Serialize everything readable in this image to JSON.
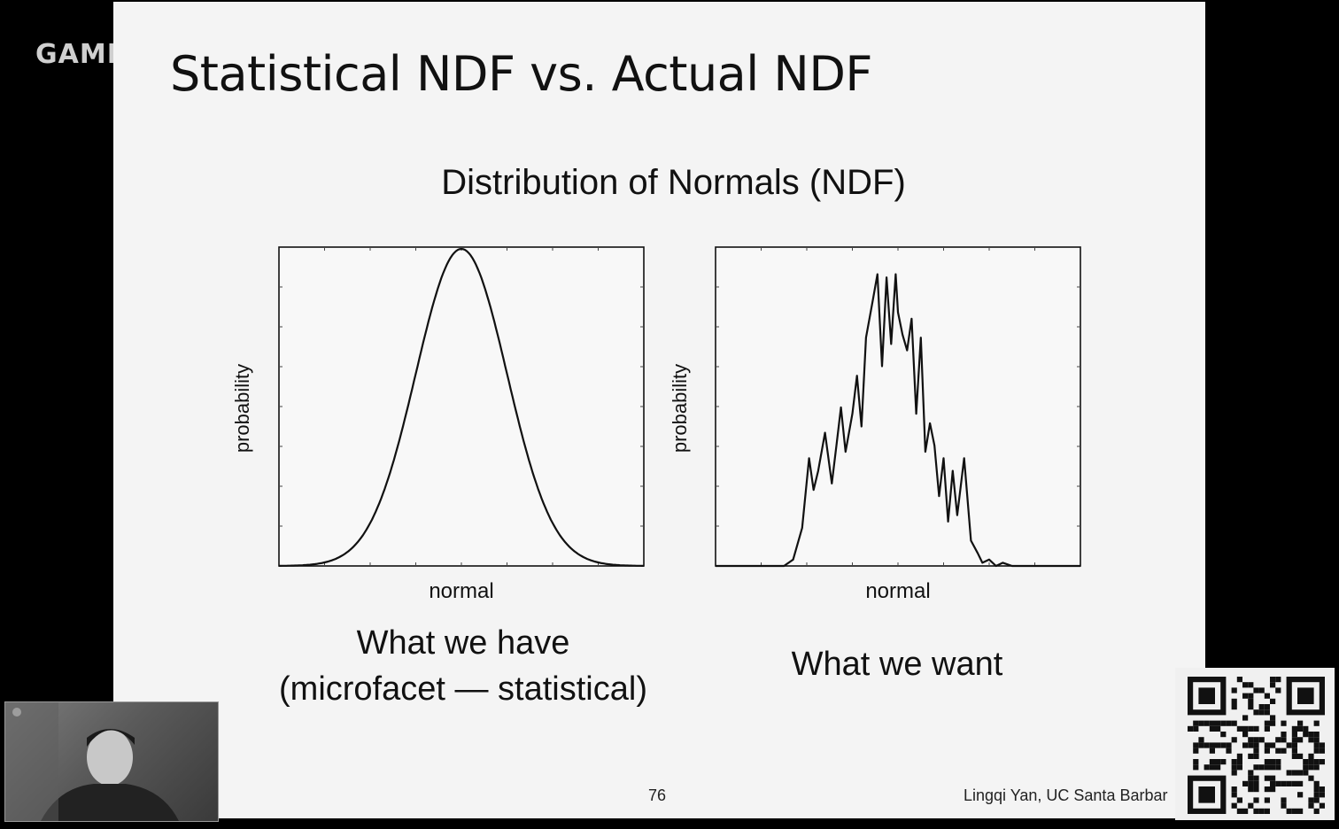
{
  "overlay": {
    "brand": "GAME"
  },
  "slide": {
    "title": "Statistical NDF vs. Actual NDF",
    "figure_heading": "Distribution of Normals (NDF)",
    "page_number": "76",
    "author": "Lingqi Yan, UC Santa Barbar"
  },
  "captions": {
    "left_line1": "What we have",
    "left_line2": "(microfacet — statistical)",
    "right": "What we want"
  },
  "chart_data": [
    {
      "type": "line",
      "xlabel": "normal",
      "ylabel": "probability",
      "curve": "gaussian",
      "x": [
        -4,
        -3.5,
        -3,
        -2.5,
        -2,
        -1.5,
        -1,
        -0.5,
        0,
        0.5,
        1,
        1.5,
        2,
        2.5,
        3,
        3.5,
        4
      ],
      "y": [
        0.0003,
        0.0022,
        0.011,
        0.044,
        0.135,
        0.325,
        0.607,
        0.882,
        1.0,
        0.882,
        0.607,
        0.325,
        0.135,
        0.044,
        0.011,
        0.0022,
        0.0003
      ],
      "xlim": [
        -4,
        4
      ],
      "ylim": [
        0,
        1
      ]
    },
    {
      "type": "line",
      "xlabel": "normal",
      "ylabel": "probability",
      "curve": "noisy",
      "x": [
        -4,
        -2.5,
        -2.3,
        -2.1,
        -1.95,
        -1.85,
        -1.75,
        -1.6,
        -1.45,
        -1.35,
        -1.25,
        -1.15,
        -1.0,
        -0.9,
        -0.8,
        -0.7,
        -0.55,
        -0.45,
        -0.35,
        -0.25,
        -0.15,
        -0.05,
        0.0,
        0.1,
        0.2,
        0.3,
        0.4,
        0.5,
        0.6,
        0.7,
        0.8,
        0.9,
        1.0,
        1.1,
        1.2,
        1.3,
        1.45,
        1.6,
        1.75,
        1.85,
        2.0,
        2.15,
        2.3,
        2.5,
        2.7,
        4
      ],
      "y": [
        0,
        0,
        0.02,
        0.12,
        0.34,
        0.24,
        0.3,
        0.42,
        0.26,
        0.38,
        0.5,
        0.36,
        0.48,
        0.6,
        0.44,
        0.72,
        0.84,
        0.92,
        0.63,
        0.91,
        0.7,
        0.92,
        0.8,
        0.73,
        0.68,
        0.78,
        0.48,
        0.72,
        0.36,
        0.45,
        0.38,
        0.22,
        0.34,
        0.14,
        0.3,
        0.16,
        0.34,
        0.08,
        0.04,
        0.01,
        0.02,
        0.0,
        0.01,
        0.0,
        0.0,
        0.0
      ],
      "xlim": [
        -4,
        4
      ],
      "ylim": [
        0,
        1
      ]
    }
  ]
}
